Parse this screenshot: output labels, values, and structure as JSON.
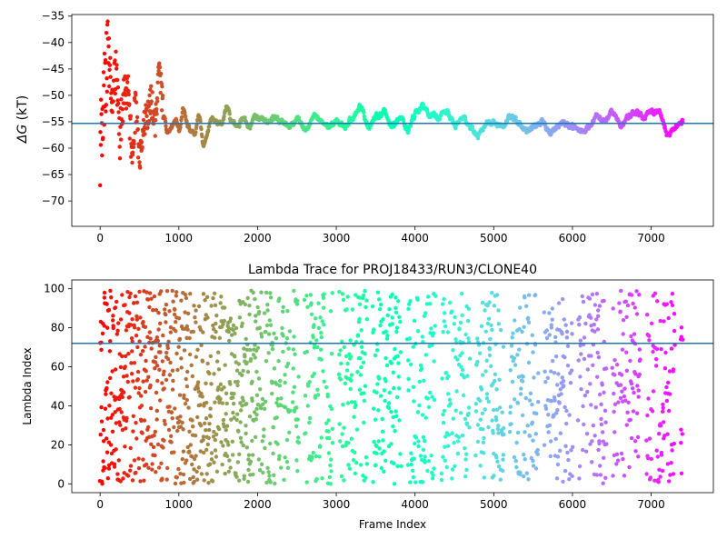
{
  "chart_data": [
    {
      "type": "scatter",
      "title": "",
      "xlabel": "",
      "ylabel": "ΔG (kT)",
      "ylabel_symbol": "ΔG",
      "ylabel_unit": "(kT)",
      "xlim": [
        -360,
        7790
      ],
      "ylim": [
        -74.8,
        -34.7
      ],
      "x_ticks": [
        0,
        1000,
        2000,
        3000,
        4000,
        5000,
        6000,
        7000
      ],
      "x_tick_labels": [
        "0",
        "1000",
        "2000",
        "3000",
        "4000",
        "5000",
        "6000",
        "7000"
      ],
      "y_ticks": [
        -70,
        -65,
        -60,
        -55,
        -50,
        -45,
        -40,
        -35
      ],
      "y_tick_labels": [
        "−70",
        "−65",
        "−60",
        "−55",
        "−50",
        "−45",
        "−40",
        "−35"
      ],
      "hline": -55.3,
      "hline_color": "#1f77b4",
      "colormap": "rainbow (red at frame 0 → violet at last frame)",
      "x_max": 7400,
      "series": [
        {
          "frames": [
            0,
            50,
            100,
            150,
            200,
            250,
            300,
            350,
            400,
            450,
            500,
            550,
            600,
            650,
            700,
            750,
            800,
            850,
            900,
            950,
            1000,
            1050,
            1100,
            1150,
            1200,
            1250,
            1300,
            1350,
            1400,
            1450,
            1500,
            1550,
            1600,
            1650,
            1700,
            1750,
            1800,
            1850,
            1900,
            1950,
            2000,
            2100,
            2200,
            2300,
            2400,
            2500,
            2600,
            2700,
            2800,
            2900,
            3000,
            3100,
            3200,
            3300,
            3400,
            3500,
            3600,
            3700,
            3800,
            3900,
            4000,
            4100,
            4200,
            4300,
            4400,
            4500,
            4600,
            4700,
            4800,
            4900,
            5000,
            5100,
            5200,
            5300,
            5400,
            5500,
            5600,
            5700,
            5800,
            5900,
            6000,
            6100,
            6200,
            6300,
            6400,
            6500,
            6600,
            6700,
            6800,
            6900,
            7000,
            7100,
            7200,
            7300,
            7400
          ],
          "values": [
            -60,
            -50,
            -40,
            -52,
            -45,
            -58,
            -50,
            -48,
            -60,
            -52,
            -63,
            -55,
            -54,
            -51,
            -55,
            -44,
            -53,
            -58,
            -56,
            -54,
            -57,
            -52,
            -56,
            -57,
            -57,
            -53,
            -60,
            -57,
            -54,
            -55,
            -55,
            -55,
            -52,
            -55,
            -55,
            -56,
            -54,
            -55,
            -56,
            -54,
            -54,
            -55,
            -54,
            -55,
            -56,
            -54,
            -57,
            -54,
            -55,
            -56,
            -55,
            -56,
            -54,
            -52,
            -56,
            -54,
            -53,
            -56,
            -54,
            -57,
            -53,
            -52,
            -54,
            -54,
            -53,
            -56,
            -54,
            -56,
            -58,
            -55,
            -55,
            -56,
            -54,
            -55,
            -57,
            -56,
            -55,
            -57,
            -56,
            -55,
            -56,
            -57,
            -56,
            -54,
            -55,
            -53,
            -56,
            -54,
            -53,
            -54,
            -53,
            -53,
            -58,
            -56,
            -55
          ]
        },
        {
          "frames": [
            0,
            25,
            50,
            75,
            100,
            125,
            150,
            175,
            200,
            250,
            300,
            350,
            400,
            450,
            500,
            550,
            600,
            700,
            800,
            900,
            1000,
            1100,
            1200,
            1300,
            1400,
            1500,
            1600,
            1700,
            1800,
            1900,
            2000,
            2100,
            2200,
            2300,
            2400,
            2500,
            2600,
            2700,
            2800,
            2900,
            3000,
            3100,
            3200,
            3300,
            3400,
            3500,
            3600,
            3700,
            3800,
            3900,
            4000,
            4100,
            4200,
            4300,
            4400,
            4500,
            4600,
            4700,
            4800,
            4900,
            5000,
            5100,
            5200,
            5300,
            5400,
            5500,
            5600,
            5700,
            5800,
            5900,
            6000,
            6100,
            6200,
            6300,
            6400,
            6500,
            6600,
            6700,
            6800,
            6900,
            7000,
            7100,
            7200,
            7300,
            7400
          ],
          "values": [
            5,
            90,
            30,
            70,
            15,
            95,
            40,
            80,
            20,
            60,
            10,
            85,
            35,
            75,
            5,
            55,
            95,
            25,
            65,
            45,
            15,
            85,
            35,
            60,
            10,
            90,
            50,
            20,
            80,
            40,
            5,
            95,
            30,
            70,
            15,
            60,
            90,
            25,
            75,
            45,
            10,
            85,
            35,
            65,
            20,
            95,
            50,
            5,
            80,
            40,
            70,
            15,
            90,
            30,
            60,
            10,
            85,
            45,
            20,
            75,
            35,
            95,
            5,
            55,
            80,
            25,
            65,
            40,
            90,
            15,
            70,
            30,
            85,
            50,
            10,
            60,
            95,
            20,
            45,
            75,
            35,
            90,
            5,
            55,
            25
          ],
          "name": ""
        }
      ]
    },
    {
      "type": "scatter",
      "title": "Lambda Trace for PROJ18433/RUN3/CLONE40",
      "xlabel": "Frame Index",
      "ylabel": "Lambda Index",
      "xlim": [
        -360,
        7790
      ],
      "ylim": [
        -4.5,
        104.5
      ],
      "x_ticks": [
        0,
        1000,
        2000,
        3000,
        4000,
        5000,
        6000,
        7000
      ],
      "x_tick_labels": [
        "0",
        "1000",
        "2000",
        "3000",
        "4000",
        "5000",
        "6000",
        "7000"
      ],
      "y_ticks": [
        0,
        20,
        40,
        60,
        80,
        100
      ],
      "y_tick_labels": [
        "0",
        "20",
        "40",
        "60",
        "80",
        "100"
      ],
      "hline": 72,
      "hline_color": "#1f77b4",
      "colormap": "rainbow (red at frame 0 → violet at last frame)",
      "x_max": 7400,
      "lambda_range": [
        0,
        99
      ]
    }
  ]
}
